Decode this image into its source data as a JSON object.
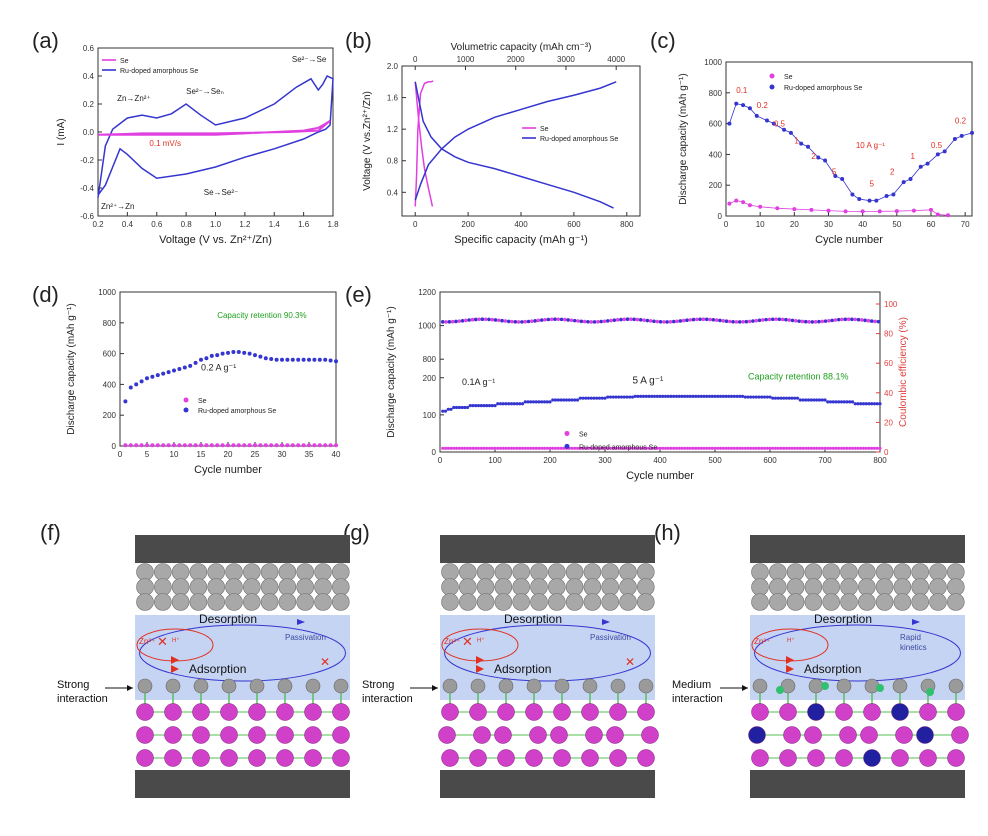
{
  "labels": {
    "a": "(a)",
    "b": "(b)",
    "c": "(c)",
    "d": "(d)",
    "e": "(e)",
    "f": "(f)",
    "g": "(g)",
    "h": "(h)"
  },
  "colors": {
    "se": "#e040e0",
    "ru": "#3535d0",
    "red": "#e03020",
    "green": "#20a020",
    "ce": "#e04040",
    "axis": "#333333"
  },
  "chart_data": [
    {
      "id": "a",
      "type": "line",
      "xlabel": "Voltage (V vs. Zn²⁺/Zn)",
      "ylabel": "I (mA)",
      "xlim": [
        0.2,
        1.8
      ],
      "ylim": [
        -0.6,
        0.6
      ],
      "xticks": [
        0.2,
        0.4,
        0.6,
        0.8,
        1.0,
        1.2,
        1.4,
        1.6,
        1.8
      ],
      "yticks": [
        -0.6,
        -0.4,
        -0.2,
        0.0,
        0.2,
        0.4,
        0.6
      ],
      "legend": [
        "Se",
        "Ru-doped amorphous Se"
      ],
      "annotations": [
        "Zn→Zn²⁺",
        "Se²⁻→Seₙ",
        "Se²⁻→Se",
        "Zn²⁺→Zn",
        "Se→Se²⁻",
        "0.1 mV/s"
      ],
      "series": [
        {
          "name": "Se",
          "x": [
            0.2,
            0.4,
            0.6,
            0.8,
            1.0,
            1.2,
            1.4,
            1.6,
            1.7,
            1.75,
            1.78,
            1.7,
            1.5,
            1.0,
            0.5,
            0.2
          ],
          "y": [
            -0.02,
            -0.02,
            -0.02,
            -0.02,
            -0.02,
            -0.01,
            0.0,
            0.01,
            0.03,
            0.06,
            0.08,
            0.01,
            0.0,
            -0.01,
            -0.01,
            -0.02
          ]
        },
        {
          "name": "Ru-doped amorphous Se",
          "x": [
            0.2,
            0.25,
            0.3,
            0.4,
            0.5,
            0.6,
            0.7,
            0.8,
            0.9,
            1.0,
            1.2,
            1.4,
            1.55,
            1.65,
            1.7,
            1.73,
            1.76,
            1.8,
            1.78,
            1.75,
            1.7,
            1.6,
            1.4,
            1.2,
            1.0,
            0.8,
            0.6,
            0.5,
            0.4,
            0.35,
            0.3,
            0.25,
            0.2
          ],
          "y": [
            -0.47,
            -0.1,
            0.02,
            0.1,
            0.12,
            0.1,
            0.13,
            0.2,
            0.12,
            0.05,
            0.1,
            0.2,
            0.32,
            0.38,
            0.3,
            0.34,
            0.4,
            0.38,
            0.05,
            0.02,
            0.0,
            -0.05,
            -0.12,
            -0.18,
            -0.25,
            -0.3,
            -0.33,
            -0.26,
            -0.16,
            -0.12,
            -0.25,
            -0.38,
            -0.45
          ]
        }
      ]
    },
    {
      "id": "b",
      "type": "line",
      "xlabel": "Specific capacity (mAh g⁻¹)",
      "ylabel": "Voltage (V vs.Zn²⁺/Zn)",
      "x2label": "Volumetric capacity (mAh cm⁻³)",
      "xlim": [
        -50,
        850
      ],
      "ylim": [
        0.1,
        2.0
      ],
      "xticks": [
        0,
        200,
        400,
        600,
        800
      ],
      "x2ticks": [
        0,
        1000,
        2000,
        3000,
        4000
      ],
      "yticks": [
        0.4,
        0.8,
        1.2,
        1.6,
        2.0
      ],
      "legend": [
        "Se",
        "Ru-doped amorphous Se"
      ],
      "series": [
        {
          "name": "Se discharge",
          "x": [
            0,
            8,
            15,
            25,
            35,
            50,
            60,
            65
          ],
          "y": [
            1.8,
            1.5,
            1.25,
            0.95,
            0.7,
            0.45,
            0.3,
            0.22
          ]
        },
        {
          "name": "Se charge",
          "x": [
            0,
            5,
            10,
            20,
            35,
            50,
            60,
            68
          ],
          "y": [
            0.22,
            0.6,
            1.2,
            1.65,
            1.78,
            1.8,
            1.8,
            1.81
          ]
        },
        {
          "name": "Ru-doped discharge",
          "x": [
            0,
            30,
            60,
            100,
            150,
            200,
            300,
            400,
            500,
            600,
            700,
            750
          ],
          "y": [
            1.8,
            1.3,
            1.1,
            0.95,
            0.85,
            0.78,
            0.7,
            0.6,
            0.5,
            0.4,
            0.28,
            0.2
          ]
        },
        {
          "name": "Ru-doped charge",
          "x": [
            0,
            20,
            50,
            100,
            150,
            200,
            300,
            400,
            500,
            600,
            700,
            760
          ],
          "y": [
            0.3,
            0.5,
            0.75,
            0.95,
            1.1,
            1.2,
            1.35,
            1.45,
            1.55,
            1.63,
            1.72,
            1.8
          ]
        }
      ]
    },
    {
      "id": "c",
      "type": "scatter",
      "xlabel": "Cycle number",
      "ylabel": "Discharge capacity (mAh g⁻¹)",
      "xlim": [
        0,
        72
      ],
      "ylim": [
        0,
        1000
      ],
      "xticks": [
        0,
        10,
        20,
        30,
        40,
        50,
        60,
        70
      ],
      "yticks": [
        0,
        200,
        400,
        600,
        800,
        1000
      ],
      "legend": [
        "Se",
        "Ru-doped amorphous Se"
      ],
      "rate_labels": [
        "0.1",
        "0.2",
        "0.5",
        "1",
        "2",
        "5",
        "10 A g⁻¹",
        "5",
        "2",
        "1",
        "0.5",
        "0.2"
      ],
      "series": [
        {
          "name": "Se",
          "x": [
            1,
            3,
            5,
            7,
            10,
            15,
            20,
            25,
            30,
            35,
            40,
            45,
            50,
            55,
            60,
            62,
            65
          ],
          "y": [
            80,
            100,
            90,
            70,
            60,
            50,
            45,
            40,
            35,
            30,
            30,
            30,
            32,
            35,
            40,
            10,
            5
          ]
        },
        {
          "name": "Ru-doped amorphous Se",
          "x": [
            1,
            3,
            5,
            7,
            9,
            12,
            14,
            17,
            19,
            22,
            24,
            27,
            29,
            32,
            34,
            37,
            39,
            42,
            44,
            47,
            49,
            52,
            54,
            57,
            59,
            62,
            64,
            67,
            69,
            72
          ],
          "y": [
            600,
            730,
            720,
            700,
            650,
            620,
            600,
            560,
            540,
            470,
            450,
            380,
            360,
            260,
            240,
            140,
            110,
            100,
            100,
            130,
            140,
            220,
            240,
            320,
            340,
            400,
            420,
            500,
            520,
            540
          ]
        }
      ]
    },
    {
      "id": "d",
      "type": "scatter",
      "xlabel": "Cycle number",
      "ylabel": "Discharge capacity (mAh g⁻¹)",
      "xlim": [
        0,
        40
      ],
      "ylim": [
        0,
        1000
      ],
      "xticks": [
        0,
        5,
        10,
        15,
        20,
        25,
        30,
        35,
        40
      ],
      "yticks": [
        0,
        200,
        400,
        600,
        800,
        1000
      ],
      "legend": [
        "Se",
        "Ru-doped amorphous Se"
      ],
      "annotations": [
        "Capacity retention 90.3%",
        "0.2 A g⁻¹"
      ],
      "series": [
        {
          "name": "Se",
          "x": [
            1,
            2,
            3,
            4,
            5,
            6,
            7,
            8,
            9,
            10,
            11,
            12,
            13,
            14,
            15,
            16,
            17,
            18,
            19,
            20,
            21,
            22,
            23,
            24,
            25,
            26,
            27,
            28,
            29,
            30,
            31,
            32,
            33,
            34,
            35,
            36,
            37,
            38,
            39,
            40
          ],
          "y": [
            5,
            5,
            5,
            5,
            5,
            5,
            5,
            5,
            5,
            5,
            5,
            5,
            5,
            5,
            5,
            5,
            5,
            5,
            5,
            5,
            5,
            5,
            5,
            5,
            5,
            5,
            5,
            5,
            5,
            5,
            5,
            5,
            5,
            5,
            5,
            5,
            5,
            5,
            5,
            5
          ]
        },
        {
          "name": "Ru-doped amorphous Se",
          "x": [
            1,
            2,
            3,
            4,
            5,
            6,
            7,
            8,
            9,
            10,
            11,
            12,
            13,
            14,
            15,
            16,
            17,
            18,
            19,
            20,
            21,
            22,
            23,
            24,
            25,
            26,
            27,
            28,
            29,
            30,
            31,
            32,
            33,
            34,
            35,
            36,
            37,
            38,
            39,
            40
          ],
          "y": [
            290,
            380,
            400,
            420,
            440,
            450,
            460,
            470,
            480,
            490,
            500,
            510,
            520,
            540,
            560,
            570,
            585,
            590,
            600,
            605,
            610,
            610,
            605,
            600,
            590,
            580,
            570,
            565,
            560,
            560,
            560,
            560,
            560,
            560,
            560,
            560,
            560,
            560,
            555,
            550
          ]
        }
      ]
    },
    {
      "id": "e",
      "type": "scatter",
      "xlabel": "Cycle number",
      "ylabel": "Discharge capacity (mAh g⁻¹)",
      "y2label": "Coulombic efficiency (%)",
      "xlim": [
        0,
        800
      ],
      "xticks": [
        0,
        100,
        200,
        300,
        400,
        500,
        600,
        700,
        800
      ],
      "yticks": [
        0,
        100,
        200,
        800,
        1000,
        1200
      ],
      "y2ticks": [
        0,
        20,
        40,
        60,
        80,
        100
      ],
      "legend": [
        "Se",
        "Ru-doped amorphous Se"
      ],
      "annotations": [
        "0.1A g⁻¹",
        "5 A g⁻¹",
        "Capacity retention 88.1%"
      ],
      "series": [
        {
          "name": "Se",
          "x": [
            5,
            100,
            200,
            300,
            400,
            500,
            600,
            700,
            800
          ],
          "y": [
            10,
            10,
            10,
            10,
            10,
            10,
            10,
            10,
            10
          ]
        },
        {
          "name": "Ru-doped amorphous Se",
          "x": [
            10,
            20,
            50,
            100,
            150,
            200,
            250,
            300,
            350,
            400,
            450,
            500,
            550,
            600,
            650,
            700,
            750,
            800
          ],
          "y": [
            110,
            115,
            120,
            125,
            130,
            135,
            140,
            145,
            148,
            150,
            150,
            150,
            150,
            148,
            145,
            140,
            135,
            130
          ]
        },
        {
          "name": "Coulombic efficiency",
          "x": [
            10,
            100,
            200,
            300,
            400,
            500,
            600,
            700,
            800
          ],
          "y": [
            100,
            100,
            100,
            100,
            100,
            100,
            100,
            100,
            98
          ]
        }
      ]
    }
  ],
  "schematics": {
    "f": {
      "desorption": "Desorption",
      "adsorption": "Adsorption",
      "passivation": "Passivation",
      "ions": "Zn²⁺",
      "hplus": "H⁺",
      "interaction": "Strong\ninteraction"
    },
    "g": {
      "desorption": "Desorption",
      "adsorption": "Adsorption",
      "passivation": "Passivation",
      "ions": "Zn²⁺",
      "hplus": "H⁺",
      "interaction": "Strong\ninteraction"
    },
    "h": {
      "desorption": "Desorption",
      "adsorption": "Adsorption",
      "passivation": "Rapid\nkinetics",
      "ions": "Zn²⁺",
      "hplus": "H⁺",
      "interaction": "Medium\ninteraction"
    }
  }
}
